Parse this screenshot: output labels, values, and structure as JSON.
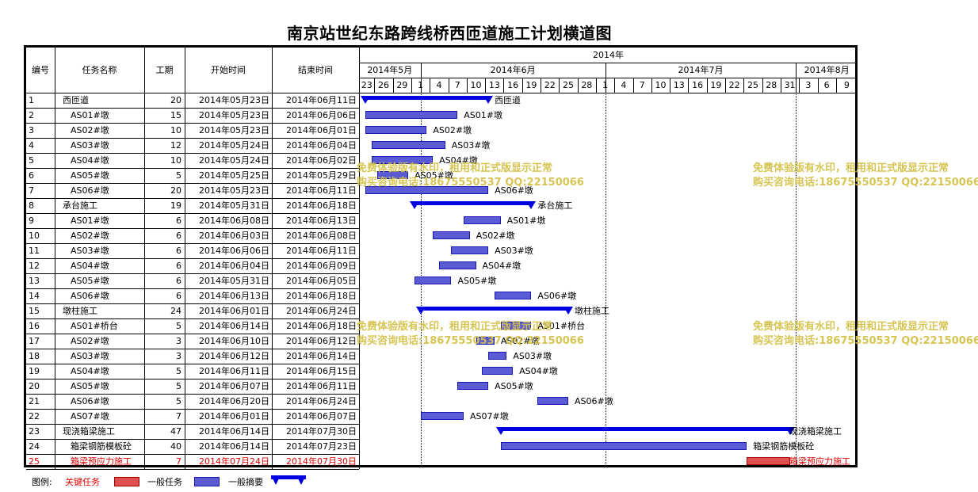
{
  "title": "南京站世纪东路跨线桥西匝道施工计划横道图",
  "columns": {
    "id": "编号",
    "name": "任务名称",
    "duration": "工期",
    "start": "开始时间",
    "end": "结束时间"
  },
  "timescale": {
    "year": "2014年",
    "months": [
      {
        "label": "2014年5月",
        "start": "2014-05-22",
        "end": "2014-06-01"
      },
      {
        "label": "2014年6月",
        "start": "2014-06-01",
        "end": "2014-07-01"
      },
      {
        "label": "2014年7月",
        "start": "2014-07-01",
        "end": "2014-08-01"
      },
      {
        "label": "2014年8月",
        "start": "2014-08-01",
        "end": "2014-08-11"
      }
    ],
    "ticks": [
      {
        "label": "23",
        "date": "2014-05-23"
      },
      {
        "label": "26",
        "date": "2014-05-26"
      },
      {
        "label": "29",
        "date": "2014-05-29"
      },
      {
        "label": "1",
        "date": "2014-06-01"
      },
      {
        "label": "4",
        "date": "2014-06-04"
      },
      {
        "label": "7",
        "date": "2014-06-07"
      },
      {
        "label": "10",
        "date": "2014-06-10"
      },
      {
        "label": "13",
        "date": "2014-06-13"
      },
      {
        "label": "16",
        "date": "2014-06-16"
      },
      {
        "label": "19",
        "date": "2014-06-19"
      },
      {
        "label": "22",
        "date": "2014-06-22"
      },
      {
        "label": "25",
        "date": "2014-06-25"
      },
      {
        "label": "28",
        "date": "2014-06-28"
      },
      {
        "label": "1",
        "date": "2014-07-01"
      },
      {
        "label": "4",
        "date": "2014-07-04"
      },
      {
        "label": "7",
        "date": "2014-07-07"
      },
      {
        "label": "10",
        "date": "2014-07-10"
      },
      {
        "label": "13",
        "date": "2014-07-13"
      },
      {
        "label": "16",
        "date": "2014-07-16"
      },
      {
        "label": "19",
        "date": "2014-07-19"
      },
      {
        "label": "22",
        "date": "2014-07-22"
      },
      {
        "label": "25",
        "date": "2014-07-25"
      },
      {
        "label": "28",
        "date": "2014-07-28"
      },
      {
        "label": "31",
        "date": "2014-07-31"
      },
      {
        "label": "3",
        "date": "2014-08-03"
      },
      {
        "label": "6",
        "date": "2014-08-06"
      },
      {
        "label": "9",
        "date": "2014-08-09"
      }
    ]
  },
  "chart_data": {
    "type": "gantt",
    "x_range": [
      "2014-05-22",
      "2014-08-11"
    ],
    "tasks": [
      {
        "id": "1",
        "name": "西匝道",
        "duration": 20,
        "start": "2014年05月23日",
        "end": "2014年06月11日",
        "start_date": "2014-05-23",
        "end_date": "2014-06-11",
        "kind": "summary",
        "indent": 0
      },
      {
        "id": "2",
        "name": "AS01#墩",
        "duration": 15,
        "start": "2014年05月23日",
        "end": "2014年06月06日",
        "start_date": "2014-05-23",
        "end_date": "2014-06-06",
        "kind": "task",
        "indent": 1
      },
      {
        "id": "3",
        "name": "AS02#墩",
        "duration": 10,
        "start": "2014年05月23日",
        "end": "2014年06月01日",
        "start_date": "2014-05-23",
        "end_date": "2014-06-01",
        "kind": "task",
        "indent": 1
      },
      {
        "id": "4",
        "name": "AS03#墩",
        "duration": 12,
        "start": "2014年05月24日",
        "end": "2014年06月04日",
        "start_date": "2014-05-24",
        "end_date": "2014-06-04",
        "kind": "task",
        "indent": 1
      },
      {
        "id": "5",
        "name": "AS04#墩",
        "duration": 10,
        "start": "2014年05月24日",
        "end": "2014年06月02日",
        "start_date": "2014-05-24",
        "end_date": "2014-06-02",
        "kind": "task",
        "indent": 1
      },
      {
        "id": "6",
        "name": "AS05#墩",
        "duration": 5,
        "start": "2014年05月25日",
        "end": "2014年05月29日",
        "start_date": "2014-05-25",
        "end_date": "2014-05-29",
        "kind": "task",
        "indent": 1
      },
      {
        "id": "7",
        "name": "AS06#墩",
        "duration": 20,
        "start": "2014年05月23日",
        "end": "2014年06月11日",
        "start_date": "2014-05-23",
        "end_date": "2014-06-11",
        "kind": "task",
        "indent": 1
      },
      {
        "id": "8",
        "name": "承台施工",
        "duration": 19,
        "start": "2014年05月31日",
        "end": "2014年06月18日",
        "start_date": "2014-05-31",
        "end_date": "2014-06-18",
        "kind": "summary",
        "indent": 0
      },
      {
        "id": "9",
        "name": "AS01#墩",
        "duration": 6,
        "start": "2014年06月08日",
        "end": "2014年06月13日",
        "start_date": "2014-06-08",
        "end_date": "2014-06-13",
        "kind": "task",
        "indent": 1
      },
      {
        "id": "10",
        "name": "AS02#墩",
        "duration": 6,
        "start": "2014年06月03日",
        "end": "2014年06月08日",
        "start_date": "2014-06-03",
        "end_date": "2014-06-08",
        "kind": "task",
        "indent": 1
      },
      {
        "id": "11",
        "name": "AS03#墩",
        "duration": 6,
        "start": "2014年06月06日",
        "end": "2014年06月11日",
        "start_date": "2014-06-06",
        "end_date": "2014-06-11",
        "kind": "task",
        "indent": 1
      },
      {
        "id": "12",
        "name": "AS04#墩",
        "duration": 6,
        "start": "2014年06月04日",
        "end": "2014年06月09日",
        "start_date": "2014-06-04",
        "end_date": "2014-06-09",
        "kind": "task",
        "indent": 1
      },
      {
        "id": "13",
        "name": "AS05#墩",
        "duration": 6,
        "start": "2014年05月31日",
        "end": "2014年06月05日",
        "start_date": "2014-05-31",
        "end_date": "2014-06-05",
        "kind": "task",
        "indent": 1
      },
      {
        "id": "14",
        "name": "AS06#墩",
        "duration": 6,
        "start": "2014年06月13日",
        "end": "2014年06月18日",
        "start_date": "2014-06-13",
        "end_date": "2014-06-18",
        "kind": "task",
        "indent": 1
      },
      {
        "id": "15",
        "name": "墩柱施工",
        "duration": 24,
        "start": "2014年06月01日",
        "end": "2014年06月24日",
        "start_date": "2014-06-01",
        "end_date": "2014-06-24",
        "kind": "summary",
        "indent": 0
      },
      {
        "id": "16",
        "name": "AS01#桥台",
        "duration": 5,
        "start": "2014年06月14日",
        "end": "2014年06月18日",
        "start_date": "2014-06-14",
        "end_date": "2014-06-18",
        "kind": "task",
        "indent": 1
      },
      {
        "id": "17",
        "name": "AS02#墩",
        "duration": 3,
        "start": "2014年06月10日",
        "end": "2014年06月12日",
        "start_date": "2014-06-10",
        "end_date": "2014-06-12",
        "kind": "task",
        "indent": 1
      },
      {
        "id": "18",
        "name": "AS03#墩",
        "duration": 3,
        "start": "2014年06月12日",
        "end": "2014年06月14日",
        "start_date": "2014-06-12",
        "end_date": "2014-06-14",
        "kind": "task",
        "indent": 1
      },
      {
        "id": "19",
        "name": "AS04#墩",
        "duration": 5,
        "start": "2014年06月11日",
        "end": "2014年06月15日",
        "start_date": "2014-06-11",
        "end_date": "2014-06-15",
        "kind": "task",
        "indent": 1
      },
      {
        "id": "20",
        "name": "AS05#墩",
        "duration": 5,
        "start": "2014年06月07日",
        "end": "2014年06月11日",
        "start_date": "2014-06-07",
        "end_date": "2014-06-11",
        "kind": "task",
        "indent": 1
      },
      {
        "id": "21",
        "name": "AS06#墩",
        "duration": 5,
        "start": "2014年06月20日",
        "end": "2014年06月24日",
        "start_date": "2014-06-20",
        "end_date": "2014-06-24",
        "kind": "task",
        "indent": 1
      },
      {
        "id": "22",
        "name": "AS07#墩",
        "duration": 7,
        "start": "2014年06月01日",
        "end": "2014年06月07日",
        "start_date": "2014-06-01",
        "end_date": "2014-06-07",
        "kind": "task",
        "indent": 1
      },
      {
        "id": "23",
        "name": "现浇箱梁施工",
        "duration": 47,
        "start": "2014年06月14日",
        "end": "2014年07月30日",
        "start_date": "2014-06-14",
        "end_date": "2014-07-30",
        "kind": "summary",
        "indent": 0
      },
      {
        "id": "24",
        "name": "箱梁钢筋模板砼",
        "duration": 40,
        "start": "2014年06月14日",
        "end": "2014年07月23日",
        "start_date": "2014-06-14",
        "end_date": "2014-07-23",
        "kind": "task",
        "indent": 1
      },
      {
        "id": "25",
        "name": "箱梁预应力施工",
        "duration": 7,
        "start": "2014年07月24日",
        "end": "2014年07月30日",
        "start_date": "2014-07-24",
        "end_date": "2014-07-30",
        "kind": "critical",
        "indent": 1
      }
    ]
  },
  "legend": {
    "label": "图例:",
    "critical": "关键任务",
    "task": "一般任务",
    "summary": "一般摘要"
  },
  "watermark": {
    "line1": "免费体验版有水印，租用和正式版显示正常",
    "line2": "购买咨询电话:18675550537 QQ:22150066"
  },
  "colors": {
    "task_fill": "#5b5bd6",
    "task_border": "#1a1ab0",
    "summary": "#0000e0",
    "critical_fill": "#e05050",
    "critical_text": "#e00000",
    "watermark": "#d4c24a"
  }
}
